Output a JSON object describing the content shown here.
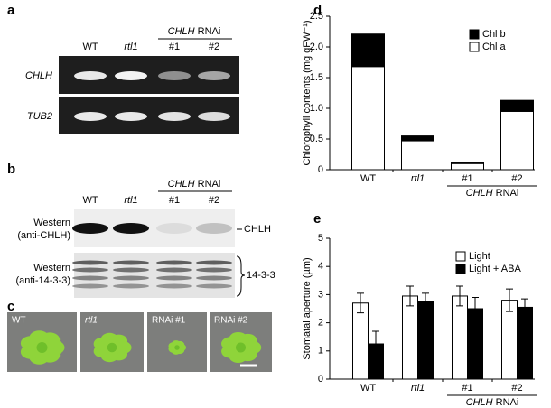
{
  "panel_a": {
    "label": "a",
    "lanes": [
      "WT",
      "rtl1",
      "#1",
      "#2"
    ],
    "group": {
      "gene": "CHLH",
      "suffix": "RNAi"
    },
    "rows": [
      "CHLH",
      "TUB2"
    ]
  },
  "panel_b": {
    "label": "b",
    "lanes": [
      "WT",
      "rtl1",
      "#1",
      "#2"
    ],
    "group": {
      "gene": "CHLH",
      "suffix": "RNAi"
    },
    "blots": [
      {
        "left": [
          "Western",
          "(anti-CHLH)"
        ],
        "right": "CHLH"
      },
      {
        "left": [
          "Western",
          "(anti-14-3-3)"
        ],
        "right": "14-3-3"
      }
    ]
  },
  "panel_c": {
    "label": "c",
    "photos": [
      "WT",
      "rtl1",
      "RNAi #1",
      "RNAi #2"
    ]
  },
  "chart_data": [
    {
      "type": "stacked_bar",
      "label": "d",
      "ylabel": "Chlorophyll contents (mg gFW⁻¹)",
      "categories": [
        "WT",
        "rtl1",
        "#1",
        "#2"
      ],
      "group": {
        "gene": "CHLH",
        "suffix": "RNAi"
      },
      "series": [
        {
          "name": "Chl a",
          "color": "#ffffff",
          "values": [
            1.68,
            0.47,
            0.1,
            0.95
          ]
        },
        {
          "name": "Chl b",
          "color": "#000000",
          "values": [
            0.53,
            0.08,
            0.01,
            0.18
          ]
        }
      ],
      "ylim": [
        0,
        2.5
      ],
      "yticks": [
        0,
        0.5,
        {
          "value": 1,
          "label": "1.0"
        },
        1.5,
        {
          "value": 2,
          "label": "2.0"
        },
        2.5
      ],
      "legend": "upper right"
    },
    {
      "type": "bar",
      "label": "e",
      "ylabel": "Stomatal aperture (µm)",
      "categories": [
        "WT",
        "rtl1",
        "#1",
        "#2"
      ],
      "group": {
        "gene": "CHLH",
        "suffix": "RNAi"
      },
      "series": [
        {
          "name": "Light",
          "color": "#ffffff",
          "values": [
            2.7,
            2.95,
            2.95,
            2.8
          ],
          "errors": [
            0.35,
            0.35,
            0.35,
            0.4
          ]
        },
        {
          "name": "Light + ABA",
          "color": "#000000",
          "values": [
            1.25,
            2.75,
            2.5,
            2.55
          ],
          "errors": [
            0.45,
            0.3,
            0.4,
            0.3
          ]
        }
      ],
      "ylim": [
        0,
        5
      ],
      "yticks": [
        0,
        1,
        2,
        3,
        4,
        5
      ],
      "legend": "upper right"
    }
  ]
}
